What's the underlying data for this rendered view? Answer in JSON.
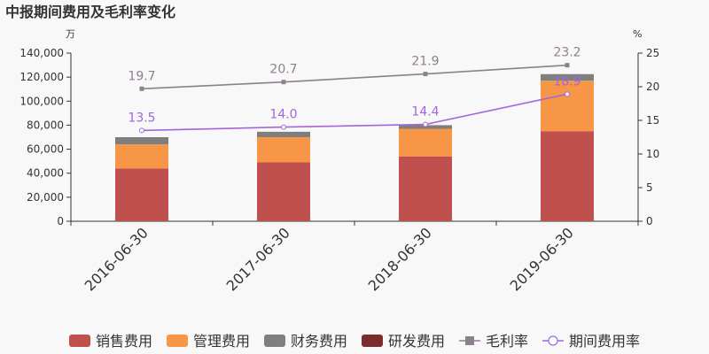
{
  "chart_data": {
    "type": "bar",
    "title": "中报期间费用及毛利率变化",
    "y_left_unit": "万",
    "y_right_unit": "%",
    "categories": [
      "2016-06-30",
      "2017-06-30",
      "2018-06-30",
      "2019-06-30"
    ],
    "ylim_left": [
      0,
      140000
    ],
    "yticks_left": [
      "0",
      "20,000",
      "40,000",
      "60,000",
      "80,000",
      "100,000",
      "120,000",
      "140,000"
    ],
    "ylim_right": [
      0,
      25
    ],
    "yticks_right": [
      "0",
      "5",
      "10",
      "15",
      "20",
      "25"
    ],
    "series": [
      {
        "name": "销售费用",
        "kind": "bar",
        "color": "#c0504d",
        "values": [
          44000,
          49000,
          54000,
          75000
        ]
      },
      {
        "name": "管理费用",
        "kind": "bar",
        "color": "#f79646",
        "values": [
          20000,
          21000,
          23000,
          42000
        ]
      },
      {
        "name": "财务费用",
        "kind": "bar",
        "color": "#7f7f7f",
        "values": [
          6000,
          4500,
          3000,
          5500
        ]
      },
      {
        "name": "研发费用",
        "kind": "bar",
        "color": "#7b2c2c",
        "values": [
          0,
          0,
          0,
          0
        ]
      },
      {
        "name": "毛利率",
        "kind": "line",
        "axis": "right",
        "color": "#8e7f8e",
        "marker": "square",
        "values": [
          19.7,
          20.7,
          21.9,
          23.2
        ],
        "labels": [
          "19.7",
          "20.7",
          "21.9",
          "23.2"
        ]
      },
      {
        "name": "期间费用率",
        "kind": "line",
        "axis": "right",
        "color": "#a566d9",
        "marker": "circle",
        "values": [
          13.5,
          14.0,
          14.4,
          18.9
        ],
        "labels": [
          "13.5",
          "14.0",
          "14.4",
          "18.9"
        ]
      }
    ],
    "grid": false,
    "legend": "bottom"
  }
}
